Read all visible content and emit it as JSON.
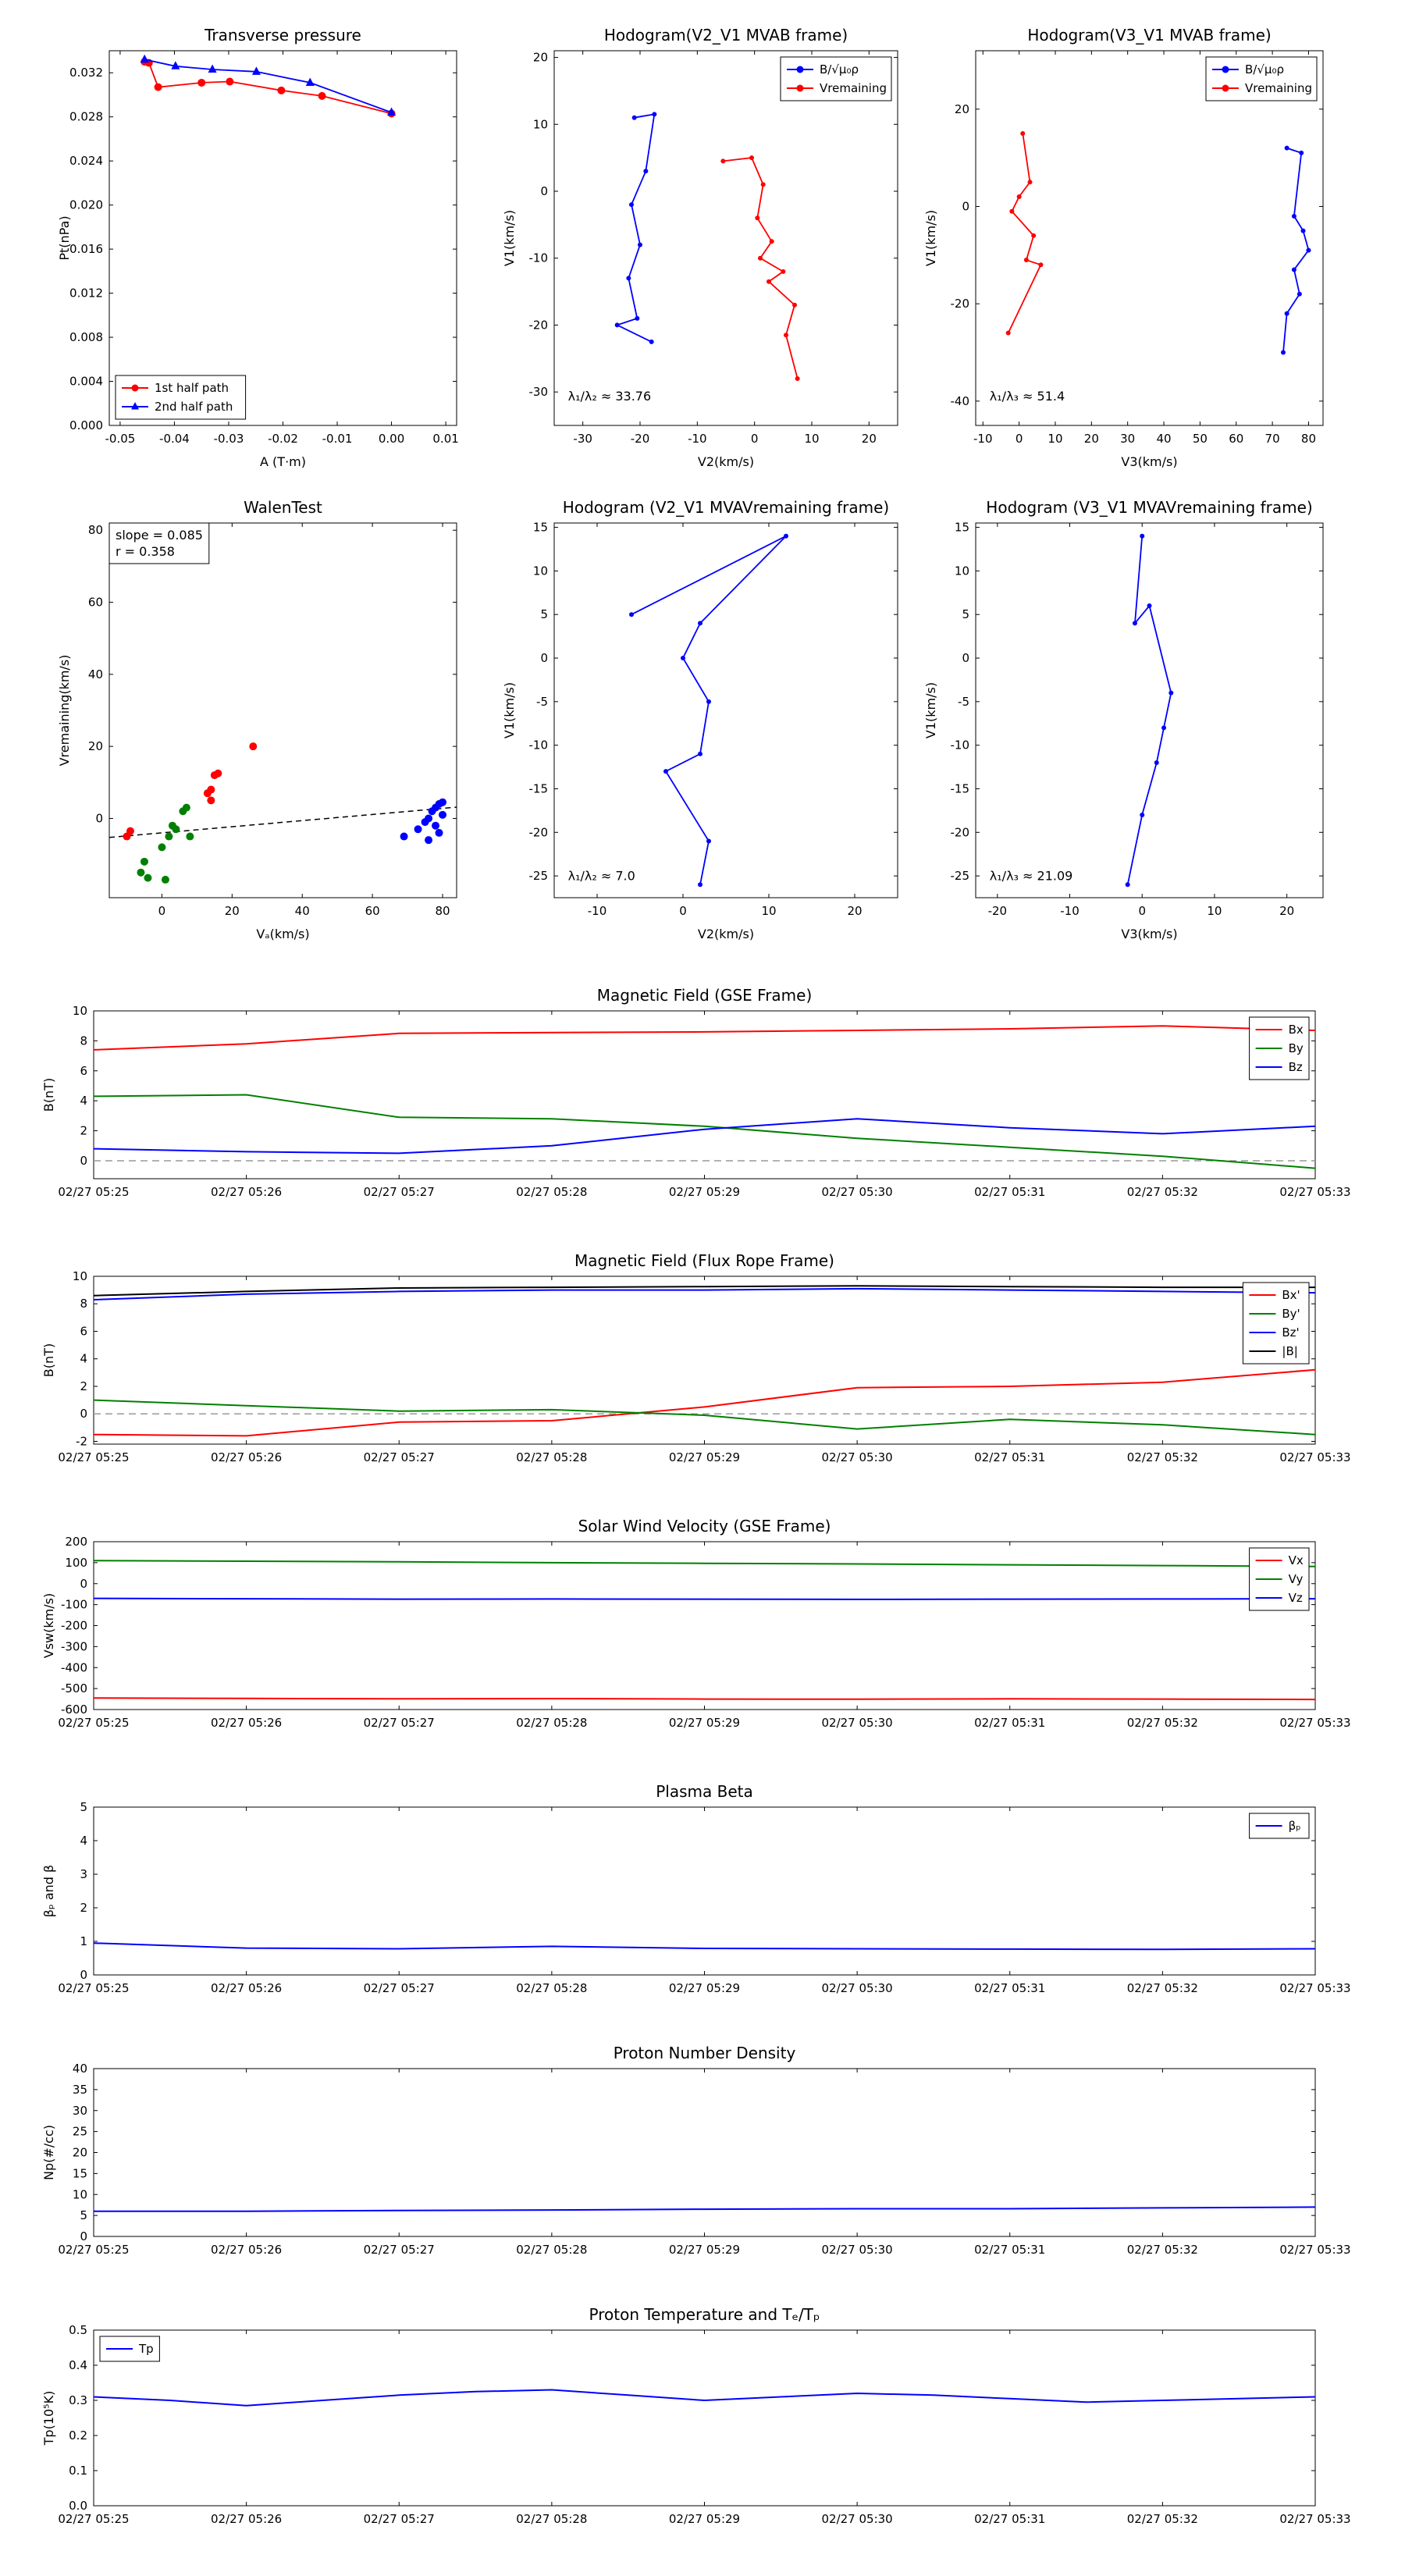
{
  "figure": {
    "background": "#ffffff"
  },
  "time_labels": [
    "02/27 05:25",
    "02/27 05:26",
    "02/27 05:27",
    "02/27 05:28",
    "02/27 05:29",
    "02/27 05:30",
    "02/27 05:31",
    "02/27 05:32",
    "02/27 05:33"
  ],
  "colors": {
    "red": "#ff0000",
    "green": "#008000",
    "blue": "#0000ff",
    "black": "#000000",
    "dash_gray": "#999999"
  },
  "chart_data": [
    {
      "id": "transverse-pressure",
      "type": "line",
      "title": "Transverse pressure",
      "xlabel": "A (T·m)",
      "ylabel": "Pt(nPa)",
      "xlim": [
        -0.052,
        0.012
      ],
      "ylim": [
        0,
        0.034
      ],
      "xticks": [
        -0.05,
        -0.04,
        -0.03,
        -0.02,
        -0.01,
        0,
        0.01
      ],
      "xtick_labels": [
        "-0.05",
        "-0.04",
        "-0.03",
        "-0.02",
        "-0.01",
        "0.00",
        "0.01"
      ],
      "yticks": [
        0,
        0.004,
        0.008,
        0.012,
        0.016,
        0.02,
        0.024,
        0.028,
        0.032
      ],
      "ytick_labels": [
        "0.000",
        "0.004",
        "0.008",
        "0.012",
        "0.016",
        "0.020",
        "0.024",
        "0.028",
        "0.032"
      ],
      "series": [
        {
          "name": "1st half path",
          "color": "#ff0000",
          "marker": "circle",
          "msize": 5,
          "x": [
            -0.0455,
            -0.0447,
            -0.043,
            -0.035,
            -0.0298,
            -0.0203,
            -0.0128,
            0.0
          ],
          "y": [
            0.033,
            0.0329,
            0.0307,
            0.0311,
            0.0312,
            0.0304,
            0.0299,
            0.0283
          ]
        },
        {
          "name": "2nd half path",
          "color": "#0000ff",
          "marker": "triangle",
          "msize": 5,
          "x": [
            -0.0455,
            -0.0398,
            -0.033,
            -0.0249,
            -0.015,
            0.0
          ],
          "y": [
            0.0332,
            0.0326,
            0.0323,
            0.0321,
            0.0311,
            0.0284
          ]
        }
      ],
      "legend": {
        "loc": "lower left",
        "entries": [
          {
            "label": "1st half path",
            "color": "#ff0000",
            "marker": "circle"
          },
          {
            "label": "2nd half path",
            "color": "#0000ff",
            "marker": "triangle"
          }
        ]
      }
    },
    {
      "id": "hodogram-v2v1-mvab",
      "type": "line",
      "title": "Hodogram(V2_V1 MVAB frame)",
      "xlabel": "V2(km/s)",
      "ylabel": "V1(km/s)",
      "xlim": [
        -35,
        25
      ],
      "ylim": [
        -35,
        21
      ],
      "xticks": [
        -30,
        -20,
        -10,
        0,
        10,
        20
      ],
      "yticks": [
        -30,
        -20,
        -10,
        0,
        10,
        20
      ],
      "series": [
        {
          "name": "B/√μ₀ρ",
          "color": "#0000ff",
          "marker": "dot",
          "msize": 3,
          "x": [
            -21,
            -17.5,
            -19,
            -21.5,
            -20,
            -22,
            -20.5,
            -24,
            -18
          ],
          "y": [
            11,
            11.5,
            3,
            -2,
            -8,
            -13,
            -19,
            -20,
            -22.5
          ]
        },
        {
          "name": "Vremaining",
          "color": "#ff0000",
          "marker": "dot",
          "msize": 3,
          "x": [
            -5.5,
            -0.5,
            1.5,
            0.5,
            3,
            1,
            5,
            2.5,
            7,
            5.5,
            7.5
          ],
          "y": [
            4.5,
            5,
            1,
            -4,
            -7.5,
            -10,
            -12,
            -13.5,
            -17,
            -21.5,
            -28
          ]
        }
      ],
      "legend": {
        "loc": "upper right",
        "entries": [
          {
            "label": "B/√μ₀ρ",
            "color": "#0000ff",
            "marker": "dot"
          },
          {
            "label": "Vremaining",
            "color": "#ff0000",
            "marker": "dot"
          }
        ]
      },
      "annotations": [
        {
          "text": "λ₁/λ₂ ≈ 33.76",
          "fx": 0.04,
          "fy": 0.9
        }
      ]
    },
    {
      "id": "hodogram-v3v1-mvab",
      "type": "line",
      "title": "Hodogram(V3_V1 MVAB frame)",
      "xlabel": "V3(km/s)",
      "ylabel": "V1(km/s)",
      "xlim": [
        -12,
        84
      ],
      "ylim": [
        -45,
        32
      ],
      "xticks": [
        -10,
        0,
        10,
        20,
        30,
        40,
        50,
        60,
        70,
        80
      ],
      "yticks": [
        -40,
        -20,
        0,
        20
      ],
      "series": [
        {
          "name": "B/√μ₀ρ",
          "color": "#0000ff",
          "marker": "dot",
          "msize": 3,
          "x": [
            74,
            78,
            76,
            78.5,
            80,
            76,
            77.5,
            74,
            73
          ],
          "y": [
            12,
            11,
            -2,
            -5,
            -9,
            -13,
            -18,
            -22,
            -30
          ]
        },
        {
          "name": "Vremaining",
          "color": "#ff0000",
          "marker": "dot",
          "msize": 3,
          "x": [
            1,
            3,
            0,
            -2,
            4,
            2,
            6,
            -3
          ],
          "y": [
            15,
            5,
            2,
            -1,
            -6,
            -11,
            -12,
            -26
          ]
        }
      ],
      "legend": {
        "loc": "upper right",
        "entries": [
          {
            "label": "B/√μ₀ρ",
            "color": "#0000ff",
            "marker": "dot"
          },
          {
            "label": "Vremaining",
            "color": "#ff0000",
            "marker": "dot"
          }
        ]
      },
      "annotations": [
        {
          "text": "λ₁/λ₃ ≈ 51.4",
          "fx": 0.04,
          "fy": 0.9
        }
      ]
    },
    {
      "id": "walen-test",
      "type": "scatter",
      "title": "WalenTest",
      "xlabel": "Vₐ(km/s)",
      "ylabel": "Vremaining(km/s)",
      "xlim": [
        -15,
        84
      ],
      "ylim": [
        -22,
        82
      ],
      "xticks": [
        0,
        20,
        40,
        60,
        80
      ],
      "yticks": [
        0,
        20,
        40,
        60,
        80
      ],
      "series": [
        {
          "name": "fit",
          "color": "#000000",
          "dash": "7,5",
          "width": 1.5,
          "x": [
            -15,
            84
          ],
          "y": [
            -5.28,
            3.14
          ]
        },
        {
          "name": "cluster-red",
          "color": "#ff0000",
          "line": false,
          "marker": "circle",
          "msize": 5,
          "x": [
            -10,
            -9,
            13,
            14,
            15,
            16,
            26,
            14
          ],
          "y": [
            -5,
            -3.5,
            7,
            8,
            12,
            12.5,
            20,
            5
          ]
        },
        {
          "name": "cluster-green",
          "color": "#008000",
          "line": false,
          "marker": "circle",
          "msize": 5,
          "x": [
            -6,
            -4,
            -5,
            0,
            2,
            4,
            6,
            7,
            3,
            8,
            1
          ],
          "y": [
            -15,
            -16.5,
            -12,
            -8,
            -5,
            -3,
            2,
            3,
            -2,
            -5,
            -17
          ]
        },
        {
          "name": "cluster-blue",
          "color": "#0000ff",
          "line": false,
          "marker": "circle",
          "msize": 5,
          "x": [
            69,
            73,
            75,
            76,
            77,
            78,
            79,
            80,
            78,
            80,
            79,
            76
          ],
          "y": [
            -5,
            -3,
            -1,
            0,
            2,
            3,
            4,
            4.5,
            -2,
            1,
            -4,
            -6
          ]
        }
      ],
      "annotations": [
        {
          "text": [
            "slope = 0.085",
            "r = 0.358"
          ],
          "fx": 0,
          "fy": 0,
          "box": true
        }
      ]
    },
    {
      "id": "hodogram-v2v1-mvav",
      "type": "line",
      "title": "Hodogram (V2_V1 MVAVremaining frame)",
      "xlabel": "V2(km/s)",
      "ylabel": "V1(km/s)",
      "xlim": [
        -15,
        25
      ],
      "ylim": [
        -27.5,
        15.5
      ],
      "xticks": [
        -10,
        0,
        10,
        20
      ],
      "yticks": [
        -25,
        -20,
        -15,
        -10,
        -5,
        0,
        5,
        10,
        15
      ],
      "series": [
        {
          "name": "V",
          "color": "#0000ff",
          "marker": "dot",
          "msize": 3,
          "x": [
            -6,
            12,
            2,
            0,
            3,
            2,
            -2,
            3,
            2
          ],
          "y": [
            5,
            14,
            4,
            0,
            -5,
            -11,
            -13,
            -21,
            -26
          ]
        }
      ],
      "annotations": [
        {
          "text": "λ₁/λ₂ ≈ 7.0",
          "fx": 0.04,
          "fy": 0.92
        }
      ]
    },
    {
      "id": "hodogram-v3v1-mvav",
      "type": "line",
      "title": "Hodogram (V3_V1 MVAVremaining frame)",
      "xlabel": "V3(km/s)",
      "ylabel": "V1(km/s)",
      "xlim": [
        -23,
        25
      ],
      "ylim": [
        -27.5,
        15.5
      ],
      "xticks": [
        -20,
        -10,
        0,
        10,
        20
      ],
      "yticks": [
        -25,
        -20,
        -15,
        -10,
        -5,
        0,
        5,
        10,
        15
      ],
      "series": [
        {
          "name": "V",
          "color": "#0000ff",
          "marker": "dot",
          "msize": 3,
          "x": [
            0,
            -1,
            1,
            4,
            3,
            2,
            0,
            -2
          ],
          "y": [
            14,
            4,
            6,
            -4,
            -8,
            -12,
            -18,
            -26
          ]
        }
      ],
      "annotations": [
        {
          "text": "λ₁/λ₃ ≈ 21.09",
          "fx": 0.04,
          "fy": 0.92
        }
      ]
    },
    {
      "id": "b-gse",
      "type": "line",
      "title": "Magnetic Field (GSE Frame)",
      "xlabel": "",
      "ylabel": "B(nT)",
      "xlim": [
        0,
        8
      ],
      "ylim": [
        -1.2,
        10
      ],
      "xticks": [
        0,
        1,
        2,
        3,
        4,
        5,
        6,
        7,
        8
      ],
      "xtick_labels": "time_labels",
      "yticks": [
        0,
        2,
        4,
        6,
        8,
        10
      ],
      "zero_line": true,
      "series": [
        {
          "name": "Bx",
          "color": "#ff0000",
          "y": [
            7.4,
            7.8,
            8.5,
            8.55,
            8.6,
            8.7,
            8.8,
            9.0,
            8.7
          ]
        },
        {
          "name": "By",
          "color": "#008000",
          "y": [
            4.3,
            4.4,
            2.9,
            2.8,
            2.3,
            1.5,
            0.9,
            0.3,
            -0.5
          ]
        },
        {
          "name": "Bz",
          "color": "#0000ff",
          "y": [
            0.8,
            0.6,
            0.5,
            1.0,
            2.1,
            2.8,
            2.2,
            1.8,
            2.3
          ]
        }
      ],
      "legend": {
        "loc": "upper right",
        "entries": [
          {
            "label": "Bx",
            "color": "#ff0000"
          },
          {
            "label": "By",
            "color": "#008000"
          },
          {
            "label": "Bz",
            "color": "#0000ff"
          }
        ]
      }
    },
    {
      "id": "b-fluxrope",
      "type": "line",
      "title": "Magnetic Field (Flux Rope Frame)",
      "xlabel": "",
      "ylabel": "B(nT)",
      "xlim": [
        0,
        8
      ],
      "ylim": [
        -2.2,
        10
      ],
      "xticks": [
        0,
        1,
        2,
        3,
        4,
        5,
        6,
        7,
        8
      ],
      "xtick_labels": "time_labels",
      "yticks": [
        -2,
        0,
        2,
        4,
        6,
        8,
        10
      ],
      "zero_line": true,
      "series": [
        {
          "name": "Bx'",
          "color": "#ff0000",
          "y": [
            -1.5,
            -1.6,
            -0.6,
            -0.5,
            0.5,
            1.9,
            2.0,
            2.3,
            3.2
          ]
        },
        {
          "name": "By'",
          "color": "#008000",
          "y": [
            1.0,
            0.6,
            0.2,
            0.3,
            -0.1,
            -1.1,
            -0.4,
            -0.8,
            -1.5
          ]
        },
        {
          "name": "Bz'",
          "color": "#0000ff",
          "y": [
            8.3,
            8.7,
            8.9,
            9.0,
            9.0,
            9.1,
            9.0,
            8.9,
            8.8
          ]
        },
        {
          "name": "|B|",
          "color": "#000000",
          "y": [
            8.6,
            8.9,
            9.15,
            9.2,
            9.25,
            9.3,
            9.25,
            9.2,
            9.2
          ]
        }
      ],
      "legend": {
        "loc": "upper right",
        "entries": [
          {
            "label": "Bx'",
            "color": "#ff0000"
          },
          {
            "label": "By'",
            "color": "#008000"
          },
          {
            "label": "Bz'",
            "color": "#0000ff"
          },
          {
            "label": "|B|",
            "color": "#000000"
          }
        ]
      }
    },
    {
      "id": "vsw-gse",
      "type": "line",
      "title": "Solar Wind Velocity (GSE Frame)",
      "xlabel": "",
      "ylabel": "Vsw(km/s)",
      "xlim": [
        0,
        8
      ],
      "ylim": [
        -600,
        200
      ],
      "xticks": [
        0,
        1,
        2,
        3,
        4,
        5,
        6,
        7,
        8
      ],
      "xtick_labels": "time_labels",
      "yticks": [
        -600,
        -500,
        -400,
        -300,
        -200,
        -100,
        0,
        100,
        200
      ],
      "series": [
        {
          "name": "Vx",
          "color": "#ff0000",
          "y": [
            -545,
            -547,
            -549,
            -548,
            -550,
            -551,
            -549,
            -550,
            -552
          ]
        },
        {
          "name": "Vy",
          "color": "#008000",
          "y": [
            110,
            107,
            104,
            100,
            97,
            94,
            90,
            86,
            82
          ]
        },
        {
          "name": "Vz",
          "color": "#0000ff",
          "y": [
            -70,
            -72,
            -74,
            -73,
            -74,
            -75,
            -74,
            -73,
            -72
          ]
        }
      ],
      "legend": {
        "loc": "upper right",
        "entries": [
          {
            "label": "Vx",
            "color": "#ff0000"
          },
          {
            "label": "Vy",
            "color": "#008000"
          },
          {
            "label": "Vz",
            "color": "#0000ff"
          }
        ]
      }
    },
    {
      "id": "plasma-beta",
      "type": "line",
      "title": "Plasma Beta",
      "xlabel": "",
      "ylabel": "βₚ and β",
      "xlim": [
        0,
        8
      ],
      "ylim": [
        0,
        5
      ],
      "xticks": [
        0,
        1,
        2,
        3,
        4,
        5,
        6,
        7,
        8
      ],
      "xtick_labels": "time_labels",
      "yticks": [
        0,
        1,
        2,
        3,
        4,
        5
      ],
      "series": [
        {
          "name": "βₚ",
          "color": "#0000ff",
          "y": [
            0.95,
            0.8,
            0.78,
            0.85,
            0.79,
            0.78,
            0.77,
            0.76,
            0.78
          ]
        }
      ],
      "legend": {
        "loc": "upper right",
        "entries": [
          {
            "label": "βₚ",
            "color": "#0000ff"
          }
        ]
      }
    },
    {
      "id": "proton-density",
      "type": "line",
      "title": "Proton Number Density",
      "xlabel": "",
      "ylabel": "Np(#/cc)",
      "xlim": [
        0,
        8
      ],
      "ylim": [
        0,
        40
      ],
      "xticks": [
        0,
        1,
        2,
        3,
        4,
        5,
        6,
        7,
        8
      ],
      "xtick_labels": "time_labels",
      "yticks": [
        0,
        5,
        10,
        15,
        20,
        25,
        30,
        35,
        40
      ],
      "series": [
        {
          "name": "Np",
          "color": "#0000ff",
          "y": [
            6.0,
            6.0,
            6.2,
            6.3,
            6.5,
            6.6,
            6.6,
            6.8,
            7.0
          ]
        }
      ]
    },
    {
      "id": "proton-temp",
      "type": "line",
      "title": "Proton Temperature and Tₑ/Tₚ",
      "xlabel": "",
      "ylabel": "Tp(10⁵K)",
      "xlim": [
        0,
        8
      ],
      "ylim": [
        0,
        0.5
      ],
      "xticks": [
        0,
        1,
        2,
        3,
        4,
        5,
        6,
        7,
        8
      ],
      "xtick_labels": "time_labels",
      "yticks": [
        0,
        0.1,
        0.2,
        0.3,
        0.4,
        0.5
      ],
      "ytick_labels": [
        "0.0",
        "0.1",
        "0.2",
        "0.3",
        "0.4",
        "0.5"
      ],
      "series": [
        {
          "name": "Tp",
          "color": "#0000ff",
          "x": [
            0,
            0.5,
            1,
            1.5,
            2,
            2.5,
            3,
            3.5,
            4,
            4.5,
            5,
            5.5,
            6,
            6.5,
            7,
            7.5,
            8
          ],
          "y": [
            0.31,
            0.3,
            0.285,
            0.3,
            0.315,
            0.325,
            0.33,
            0.315,
            0.3,
            0.31,
            0.32,
            0.315,
            0.305,
            0.295,
            0.3,
            0.305,
            0.31
          ]
        }
      ],
      "legend": {
        "loc": "upper left",
        "entries": [
          {
            "label": "Tp",
            "color": "#0000ff"
          }
        ]
      }
    }
  ]
}
